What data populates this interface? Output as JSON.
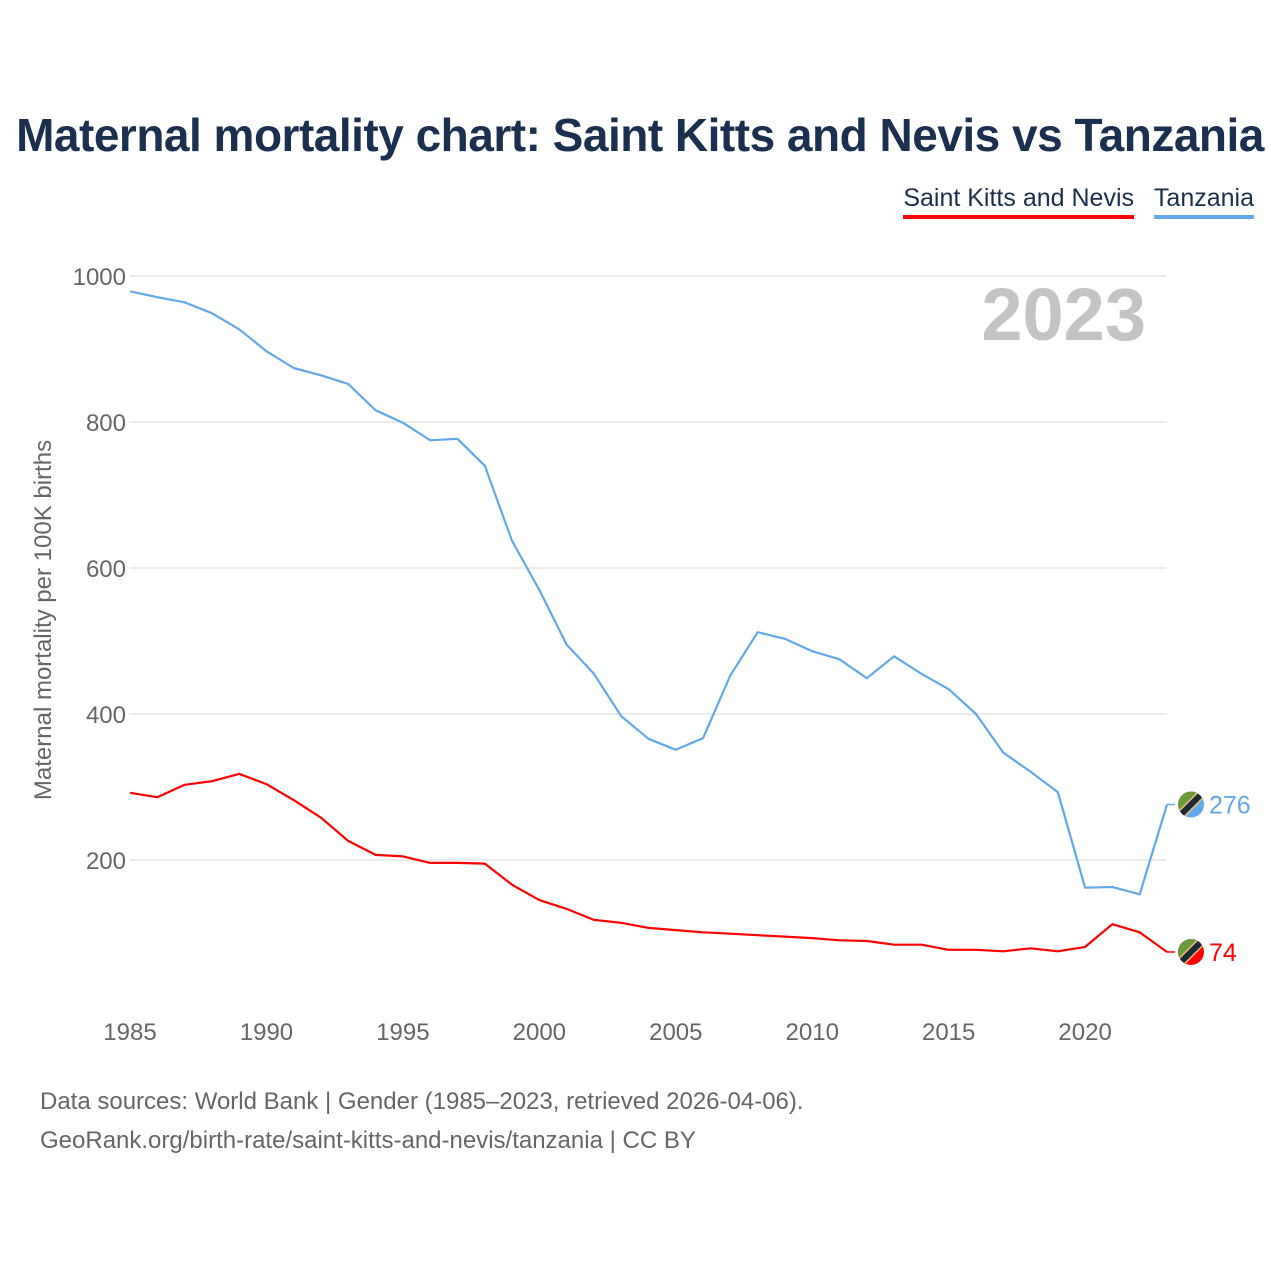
{
  "title": "Maternal mortality chart: Saint Kitts and Nevis vs Tanzania",
  "chart_data": {
    "type": "line",
    "title": "Maternal mortality chart: Saint Kitts and Nevis vs Tanzania",
    "xlabel": "",
    "ylabel": "Maternal mortality per 100K births",
    "year_label": "2023",
    "xlim": [
      1985,
      2023
    ],
    "ylim": [
      0,
      1000
    ],
    "x_ticks": [
      1985,
      1990,
      1995,
      2000,
      2005,
      2010,
      2015,
      2020
    ],
    "y_ticks": [
      200,
      400,
      600,
      800,
      1000
    ],
    "grid": true,
    "legend_position": "top-right",
    "x": [
      1985,
      1986,
      1987,
      1988,
      1989,
      1990,
      1991,
      1992,
      1993,
      1994,
      1995,
      1996,
      1997,
      1998,
      1999,
      2000,
      2001,
      2002,
      2003,
      2004,
      2005,
      2006,
      2007,
      2008,
      2009,
      2010,
      2011,
      2012,
      2013,
      2014,
      2015,
      2016,
      2017,
      2018,
      2019,
      2020,
      2021,
      2022,
      2023
    ],
    "series": [
      {
        "name": "Saint Kitts and Nevis",
        "color": "#ff0000",
        "end_label": "74",
        "values": [
          292,
          286,
          303,
          308,
          318,
          304,
          282,
          258,
          226,
          207,
          205,
          196,
          196,
          195,
          166,
          145,
          133,
          118,
          114,
          107,
          104,
          101,
          99,
          97,
          95,
          93,
          90,
          89,
          84,
          84,
          77,
          77,
          75,
          79,
          75,
          81,
          112,
          101,
          74
        ]
      },
      {
        "name": "Tanzania",
        "color": "#62a8ea",
        "end_label": "276",
        "values": [
          979,
          971,
          964,
          949,
          927,
          897,
          874,
          864,
          852,
          816,
          799,
          775,
          777,
          740,
          637,
          570,
          495,
          455,
          397,
          366,
          351,
          367,
          453,
          512,
          503,
          486,
          475,
          449,
          479,
          455,
          434,
          400,
          347,
          321,
          293,
          162,
          163,
          153,
          276
        ]
      }
    ]
  },
  "source": {
    "line1": "Data sources: World Bank | Gender (1985–2023, retrieved 2026-04-06).",
    "line2": "GeoRank.org/birth-rate/saint-kitts-and-nevis/tanzania | CC BY"
  }
}
